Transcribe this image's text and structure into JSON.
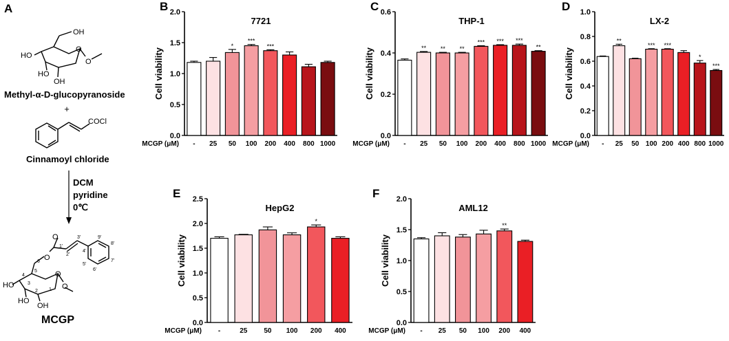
{
  "panel_a": {
    "label": "A",
    "reagent1": "Methyl-α-D-glucopyranoside",
    "plus": "+",
    "reagent2": "Cinnamoyl chloride",
    "conditions": [
      "DCM",
      "pyridine",
      "0℃"
    ],
    "product": "MCGP",
    "groups": {
      "oh": "OH",
      "ho": "HO",
      "ome": "O",
      "o": "O",
      "cocl": "COCl"
    },
    "atom_numbers": [
      "1",
      "2",
      "3",
      "4",
      "5",
      "6",
      "1'",
      "2'",
      "3'",
      "4'",
      "5'",
      "6'",
      "7'",
      "8'",
      "9'"
    ]
  },
  "colors": {
    "white": "#ffffff",
    "c25": "#fde1e3",
    "c50": "#f19499",
    "c100": "#f59ea2",
    "c200": "#f2575c",
    "c400": "#ea1f25",
    "c800": "#b8151b",
    "c1000": "#7a0d10"
  },
  "chart_data": [
    {
      "label": "B",
      "title": "7721",
      "type": "bar",
      "ylabel": "Cell viability",
      "xlabel": "MCGP (μM)",
      "categories": [
        "-",
        "25",
        "50",
        "100",
        "200",
        "400",
        "800",
        "1000"
      ],
      "values": [
        1.18,
        1.2,
        1.34,
        1.45,
        1.37,
        1.3,
        1.11,
        1.18
      ],
      "errors": [
        0.02,
        0.06,
        0.05,
        0.02,
        0.015,
        0.05,
        0.04,
        0.02
      ],
      "significance": [
        "",
        "",
        "*",
        "***",
        "***",
        "",
        "",
        ""
      ],
      "colors": [
        "#ffffff",
        "#fde1e3",
        "#f19499",
        "#f59ea2",
        "#f2575c",
        "#ea1f25",
        "#b8151b",
        "#7a0d10"
      ],
      "ylim": [
        0,
        2.0
      ],
      "yticks": [
        "0.0",
        "0.5",
        "1.0",
        "1.5",
        "2.0"
      ]
    },
    {
      "label": "C",
      "title": "THP-1",
      "type": "bar",
      "ylabel": "Cell viability",
      "xlabel": "MCGP (μM)",
      "categories": [
        "-",
        "25",
        "50",
        "100",
        "200",
        "400",
        "800",
        "1000"
      ],
      "values": [
        0.365,
        0.403,
        0.4,
        0.4,
        0.432,
        0.437,
        0.437,
        0.408
      ],
      "errors": [
        0.006,
        0.004,
        0.003,
        0.003,
        0.003,
        0.003,
        0.006,
        0.003
      ],
      "significance": [
        "",
        "**",
        "**",
        "**",
        "***",
        "***",
        "***",
        "**"
      ],
      "colors": [
        "#ffffff",
        "#fde1e3",
        "#f19499",
        "#f59ea2",
        "#f2575c",
        "#ea1f25",
        "#b8151b",
        "#7a0d10"
      ],
      "ylim": [
        0,
        0.6
      ],
      "yticks": [
        "0.0",
        "0.2",
        "0.4",
        "0.6"
      ]
    },
    {
      "label": "D",
      "title": "LX-2",
      "type": "bar",
      "ylabel": "Cell viability",
      "xlabel": "MCGP (μM)",
      "categories": [
        "-",
        "25",
        "50",
        "100",
        "200",
        "400",
        "800",
        "1000"
      ],
      "values": [
        0.638,
        0.725,
        0.62,
        0.697,
        0.697,
        0.67,
        0.585,
        0.525
      ],
      "errors": [
        0.004,
        0.012,
        0.004,
        0.004,
        0.004,
        0.015,
        0.02,
        0.008
      ],
      "significance": [
        "",
        "**",
        "",
        "***",
        "***",
        "",
        "*",
        "***"
      ],
      "colors": [
        "#ffffff",
        "#fde1e3",
        "#f19499",
        "#f59ea2",
        "#f2575c",
        "#ea1f25",
        "#b8151b",
        "#7a0d10"
      ],
      "ylim": [
        0,
        1.0
      ],
      "yticks": [
        "0.0",
        "0.2",
        "0.4",
        "0.6",
        "0.8",
        "1.0"
      ]
    },
    {
      "label": "E",
      "title": "HepG2",
      "type": "bar",
      "ylabel": "Cell viability",
      "xlabel": "MCGP (μM)",
      "categories": [
        "-",
        "25",
        "50",
        "100",
        "200",
        "400"
      ],
      "values": [
        1.7,
        1.77,
        1.87,
        1.77,
        1.93,
        1.7
      ],
      "errors": [
        0.03,
        0.01,
        0.06,
        0.04,
        0.04,
        0.03
      ],
      "significance": [
        "",
        "",
        "",
        "",
        "*",
        ""
      ],
      "colors": [
        "#ffffff",
        "#fde1e3",
        "#f19499",
        "#f59ea2",
        "#f2575c",
        "#ea1f25"
      ],
      "ylim": [
        0,
        2.5
      ],
      "yticks": [
        "0.0",
        "0.5",
        "1.0",
        "1.5",
        "2.0",
        "2.5"
      ]
    },
    {
      "label": "F",
      "title": "AML12",
      "type": "bar",
      "ylabel": "Cell viability",
      "xlabel": "MCGP (μM)",
      "categories": [
        "-",
        "25",
        "50",
        "100",
        "200",
        "400"
      ],
      "values": [
        1.35,
        1.4,
        1.38,
        1.43,
        1.48,
        1.31
      ],
      "errors": [
        0.02,
        0.05,
        0.04,
        0.06,
        0.03,
        0.02
      ],
      "significance": [
        "",
        "",
        "",
        "",
        "**",
        ""
      ],
      "colors": [
        "#ffffff",
        "#fde1e3",
        "#f19499",
        "#f59ea2",
        "#f2575c",
        "#ea1f25"
      ],
      "ylim": [
        0,
        2.0
      ],
      "yticks": [
        "0.0",
        "0.5",
        "1.0",
        "1.5",
        "2.0"
      ]
    }
  ]
}
